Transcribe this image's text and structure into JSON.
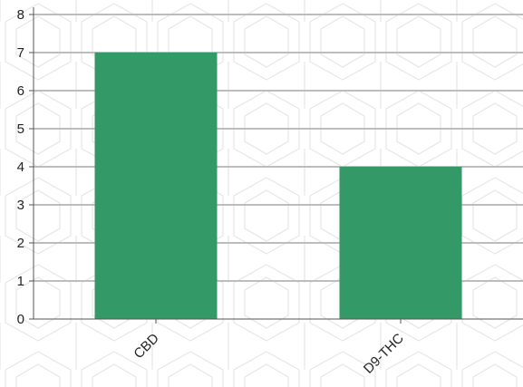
{
  "chart_data": {
    "type": "bar",
    "categories": [
      "CBD",
      "D9-THC"
    ],
    "values": [
      7,
      4
    ],
    "ylim": [
      0,
      8
    ],
    "yticks": [
      0,
      1,
      2,
      3,
      4,
      5,
      6,
      7,
      8
    ],
    "grid": true,
    "colors": {
      "bar": "#339966",
      "grid": "#bdbdbd",
      "axis": "#555555",
      "pattern": "#e6e6e6"
    }
  }
}
